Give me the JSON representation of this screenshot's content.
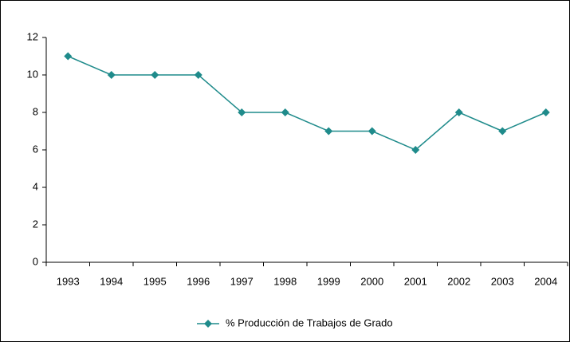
{
  "chart_data": {
    "type": "line",
    "categories": [
      "1993",
      "1994",
      "1995",
      "1996",
      "1997",
      "1998",
      "1999",
      "2000",
      "2001",
      "2002",
      "2003",
      "2004"
    ],
    "series": [
      {
        "name": "% Producción de Trabajos de Grado",
        "color": "#1f8b8b",
        "values": [
          11,
          10,
          10,
          10,
          8,
          8,
          7,
          7,
          6,
          8,
          7,
          8
        ]
      }
    ],
    "ylim": [
      0,
      12
    ],
    "yticks": [
      0,
      2,
      4,
      6,
      8,
      10,
      12
    ],
    "grid": false,
    "legend": "bottom"
  }
}
